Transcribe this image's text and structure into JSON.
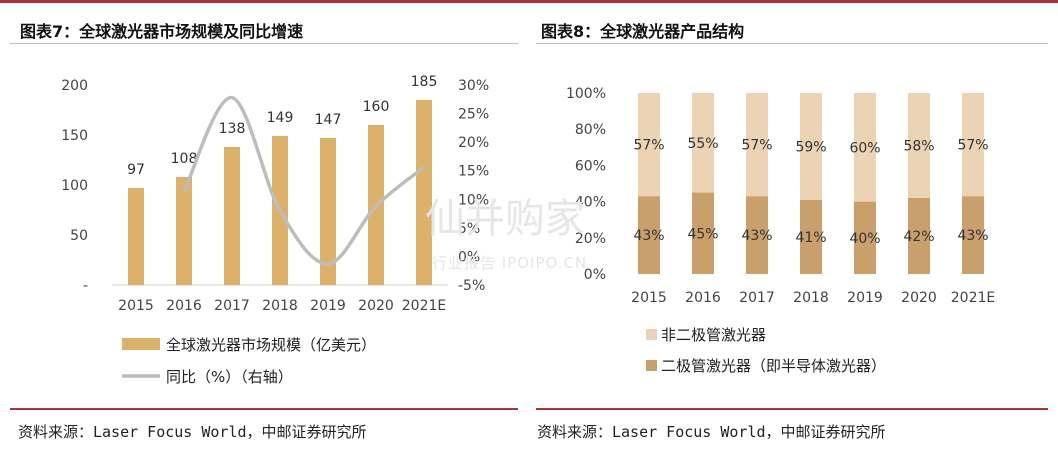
{
  "colors": {
    "accent_red": "#b0303a",
    "bar_tan": "#dcb16a",
    "line_gray": "#bdbdbd",
    "stack_dark": "#c9a06b",
    "stack_light": "#ecd3b4"
  },
  "left": {
    "title": "图表7：全球激光器市场规模及同比增速",
    "source": "资料来源：Laser Focus World，中邮证券研究所"
  },
  "right": {
    "title": "图表8：全球激光器产品结构",
    "source": "资料来源：Laser Focus World，中邮证券研究所"
  },
  "watermark": {
    "main": "仙并购家",
    "sub": "行业报告 IPOIPO.CN"
  },
  "chart_data": [
    {
      "type": "bar",
      "categories": [
        "2015",
        "2016",
        "2017",
        "2018",
        "2019",
        "2020",
        "2021E"
      ],
      "series": [
        {
          "name": "全球激光器市场规模（亿美元）",
          "type": "bar",
          "axis": "left",
          "values": [
            97,
            108,
            138,
            149,
            147,
            160,
            185
          ],
          "labels": [
            "97",
            "108",
            "138",
            "149",
            "147",
            "160",
            "185"
          ]
        },
        {
          "name": "同比（%）（右轴）",
          "type": "line",
          "axis": "right",
          "values": [
            null,
            11.3,
            27.8,
            8.0,
            -1.3,
            8.8,
            15.6
          ]
        }
      ],
      "y_left": {
        "min": 0,
        "max": 200,
        "ticks": [
          0,
          50,
          100,
          150,
          200
        ],
        "tick_labels": [
          "-",
          "50",
          "100",
          "150",
          "200"
        ]
      },
      "y_right": {
        "min": -5,
        "max": 30,
        "ticks": [
          -5,
          0,
          5,
          10,
          15,
          20,
          25,
          30
        ],
        "tick_labels": [
          "-5%",
          "0%",
          "5%",
          "10%",
          "15%",
          "20%",
          "25%",
          "30%"
        ]
      },
      "legend": "bottom"
    },
    {
      "type": "bar",
      "stacked": true,
      "categories": [
        "2015",
        "2016",
        "2017",
        "2018",
        "2019",
        "2020",
        "2021E"
      ],
      "series": [
        {
          "name": "二极管激光器（即半导体激光器）",
          "values": [
            43,
            45,
            43,
            41,
            40,
            42,
            43
          ],
          "labels": [
            "43%",
            "45%",
            "43%",
            "41%",
            "40%",
            "42%",
            "43%"
          ]
        },
        {
          "name": "非二极管激光器",
          "values": [
            57,
            55,
            57,
            59,
            60,
            58,
            57
          ],
          "labels": [
            "57%",
            "55%",
            "57%",
            "59%",
            "60%",
            "58%",
            "57%"
          ]
        }
      ],
      "y": {
        "min": 0,
        "max": 100,
        "ticks": [
          0,
          20,
          40,
          60,
          80,
          100
        ],
        "tick_labels": [
          "0%",
          "20%",
          "40%",
          "60%",
          "80%",
          "100%"
        ]
      },
      "legend": "bottom"
    }
  ]
}
